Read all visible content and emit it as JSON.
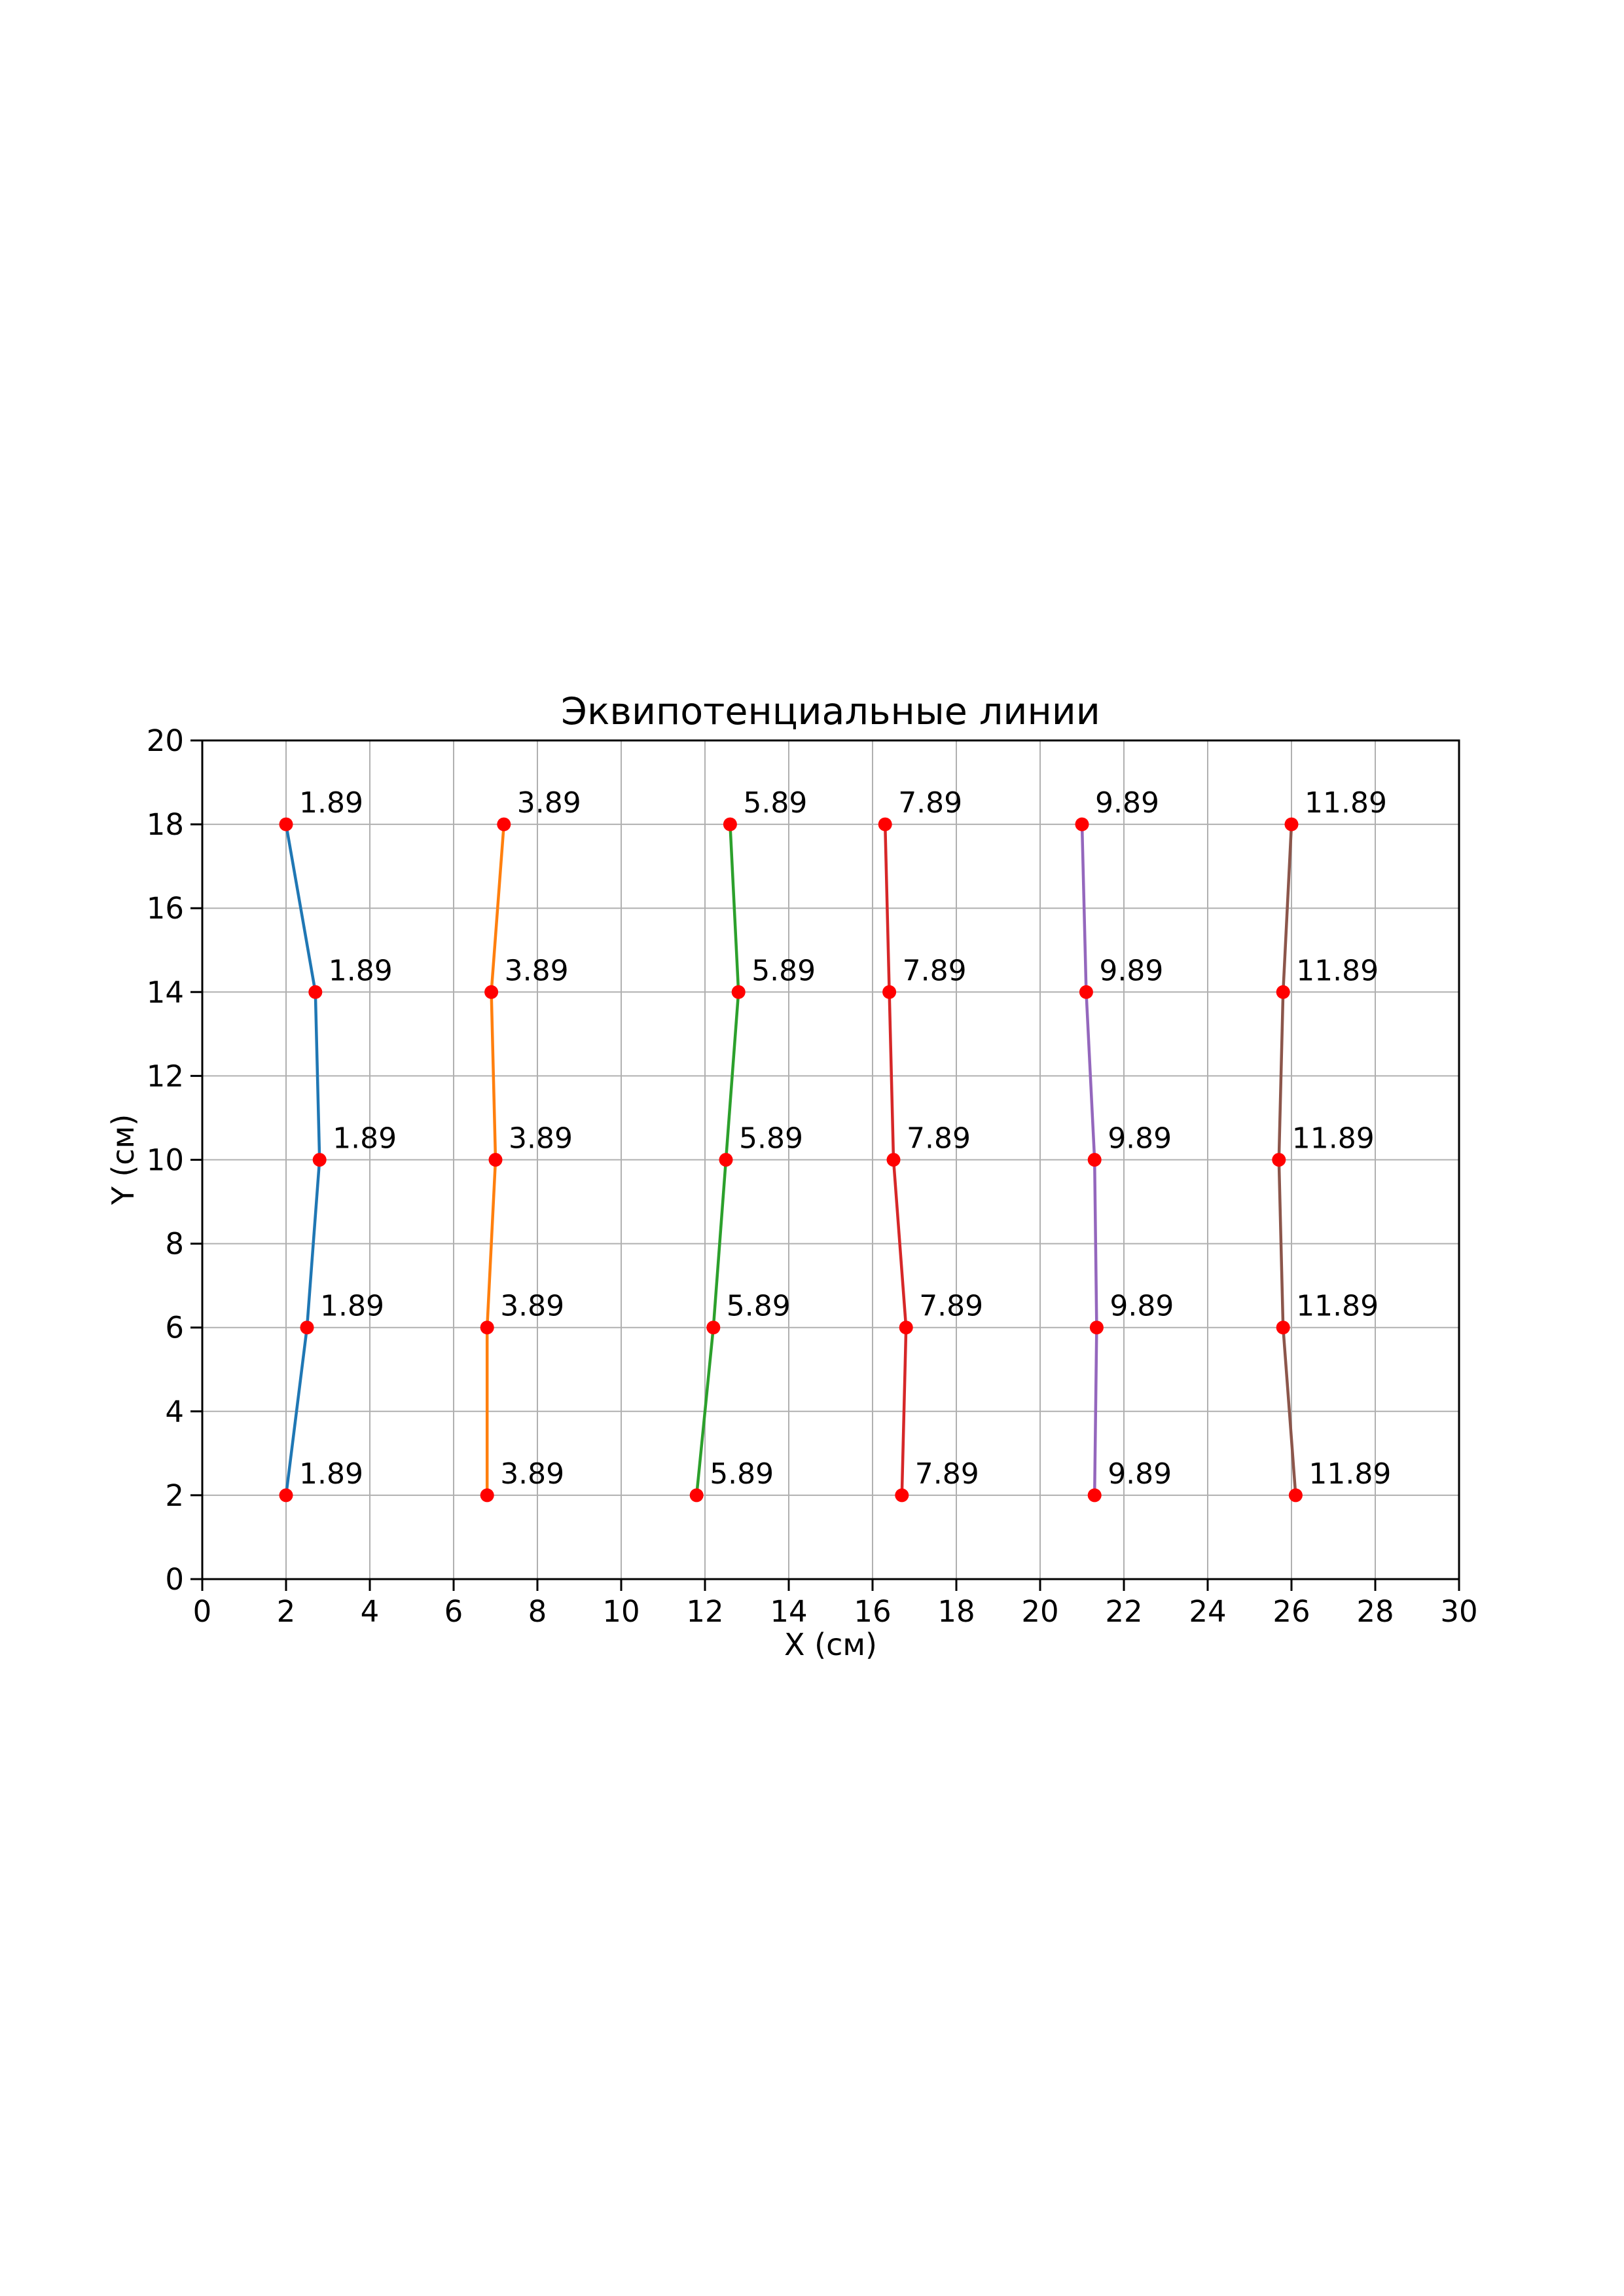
{
  "chart_data": {
    "type": "line",
    "title": "Эквипотенциальные линии",
    "xlabel": "X (см)",
    "ylabel": "Y (см)",
    "xlim": [
      0,
      30
    ],
    "ylim": [
      0,
      20
    ],
    "xticks": [
      0,
      2,
      4,
      6,
      8,
      10,
      12,
      14,
      16,
      18,
      20,
      22,
      24,
      26,
      28,
      30
    ],
    "yticks": [
      0,
      2,
      4,
      6,
      8,
      10,
      12,
      14,
      16,
      18,
      20
    ],
    "grid": true,
    "grid_color": "#b0b0b0",
    "marker": {
      "shape": "circle",
      "color": "#ff0000"
    },
    "annotation_color": "#000000",
    "y": [
      18,
      14,
      10,
      6,
      2
    ],
    "series": [
      {
        "label": "1.89",
        "color": "#1f77b4",
        "x": [
          2.0,
          2.7,
          2.8,
          2.5,
          2.0
        ]
      },
      {
        "label": "3.89",
        "color": "#ff7f0e",
        "x": [
          7.2,
          6.9,
          7.0,
          6.8,
          6.8
        ]
      },
      {
        "label": "5.89",
        "color": "#2ca02c",
        "x": [
          12.6,
          12.8,
          12.5,
          12.2,
          11.8
        ]
      },
      {
        "label": "7.89",
        "color": "#d62728",
        "x": [
          16.3,
          16.4,
          16.5,
          16.8,
          16.7
        ]
      },
      {
        "label": "9.89",
        "color": "#9467bd",
        "x": [
          21.0,
          21.1,
          21.3,
          21.35,
          21.3
        ]
      },
      {
        "label": "11.89",
        "color": "#8c564b",
        "x": [
          26.0,
          25.8,
          25.7,
          25.8,
          26.1
        ]
      }
    ]
  }
}
